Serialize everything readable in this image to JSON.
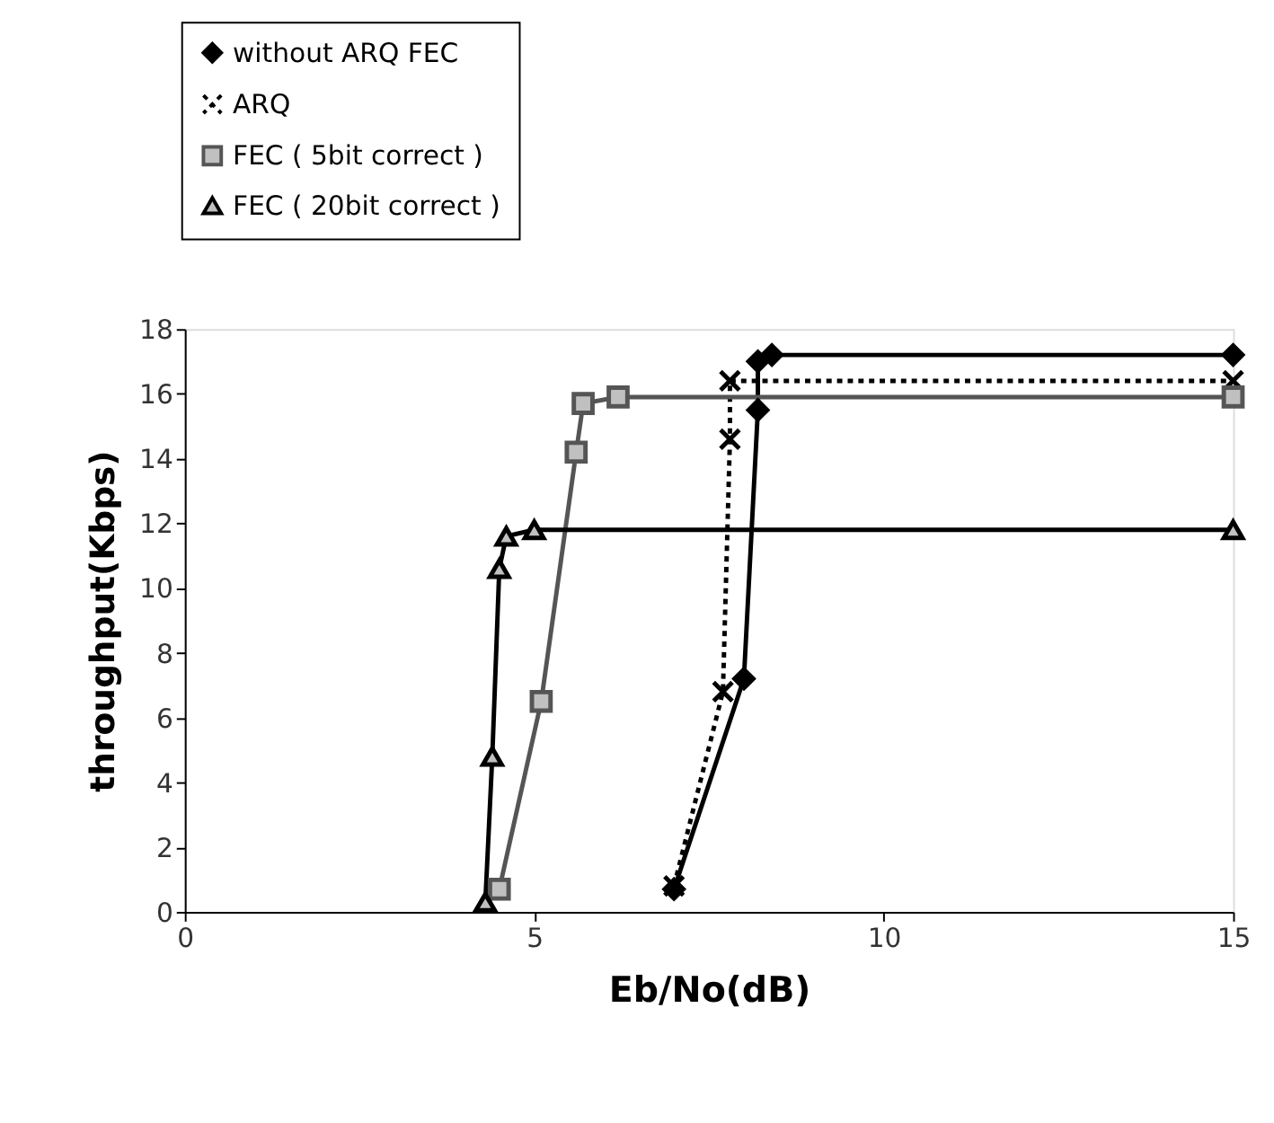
{
  "chart_data": {
    "type": "line",
    "xlabel": "Eb/No(dB)",
    "ylabel": "throughput(Kbps)",
    "xlim": [
      0,
      15
    ],
    "xticks": [
      0,
      5,
      10,
      15
    ],
    "ylim": [
      0,
      18
    ],
    "yticks": [
      0,
      2,
      4,
      6,
      8,
      10,
      12,
      14,
      16,
      18
    ],
    "grid": false,
    "legend": "top left",
    "series": [
      {
        "name": "without ARQ FEC",
        "color": "#000000",
        "marker": "diamond",
        "line_style": "solid",
        "x": [
          7.0,
          8.0,
          8.2,
          8.2,
          8.4,
          15.0
        ],
        "values": [
          0.7,
          7.2,
          15.5,
          17.0,
          17.2,
          17.2
        ]
      },
      {
        "name": "ARQ",
        "color": "#000000",
        "marker": "cross",
        "line_style": "dotted",
        "x": [
          7.0,
          7.7,
          7.8,
          7.8,
          15.0
        ],
        "values": [
          0.8,
          6.8,
          14.6,
          16.4,
          16.4
        ]
      },
      {
        "name": "FEC ( 5bit correct )",
        "color": "#555555",
        "marker": "square",
        "line_style": "solid",
        "x": [
          4.5,
          5.1,
          5.6,
          5.7,
          6.2,
          15.0
        ],
        "values": [
          0.7,
          6.5,
          14.2,
          15.7,
          15.9,
          15.9
        ]
      },
      {
        "name": "FEC ( 20bit correct )",
        "color": "#000000",
        "marker": "triangle",
        "line_style": "solid",
        "x": [
          4.3,
          4.4,
          4.5,
          4.6,
          5.0,
          15.0
        ],
        "values": [
          0.3,
          4.8,
          10.6,
          11.6,
          11.8,
          11.8
        ]
      }
    ]
  }
}
